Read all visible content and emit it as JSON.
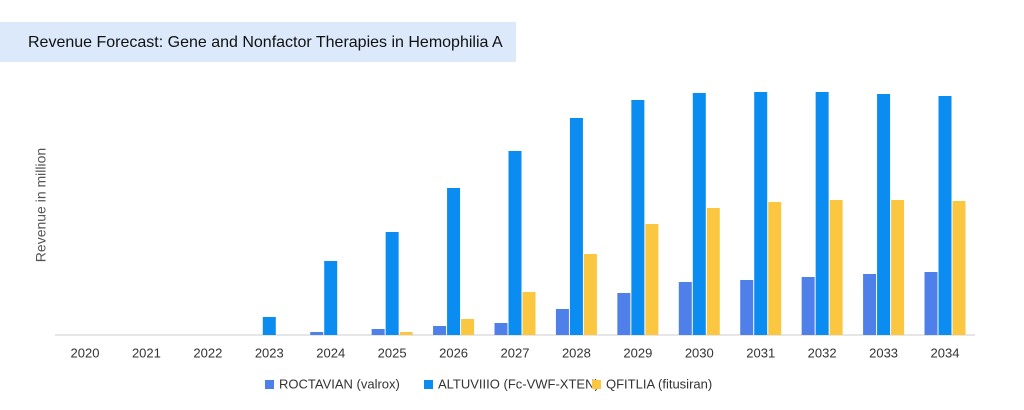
{
  "chart_data": {
    "type": "bar",
    "title": "Revenue Forecast: Gene and Nonfactor Therapies in Hemophilia A",
    "y_label": "Revenue in million",
    "categories": [
      "2020",
      "2021",
      "2022",
      "2023",
      "2024",
      "2025",
      "2026",
      "2027",
      "2028",
      "2029",
      "2030",
      "2031",
      "2032",
      "2033",
      "2034"
    ],
    "series": [
      {
        "name": "ROCTAVIAN (valrox)",
        "color": "#4f7fe8",
        "values": [
          0,
          0,
          0,
          0,
          3,
          6,
          9,
          12,
          26,
          42,
          53,
          55,
          58,
          61,
          63
        ]
      },
      {
        "name": "ALTUVIIIO (Fc-VWF-XTEN)",
        "color": "#0a8cf0",
        "values": [
          0,
          0,
          0,
          18,
          74,
          103,
          147,
          184,
          217,
          235,
          242,
          243,
          243,
          241,
          239
        ]
      },
      {
        "name": "QFITLIA (fitusiran)",
        "color": "#fbc740",
        "values": [
          0,
          0,
          0,
          0,
          0,
          3,
          16,
          43,
          81,
          111,
          127,
          133,
          135,
          135,
          134
        ]
      }
    ],
    "ylim": [
      0,
      260
    ],
    "legend": "bottom"
  }
}
